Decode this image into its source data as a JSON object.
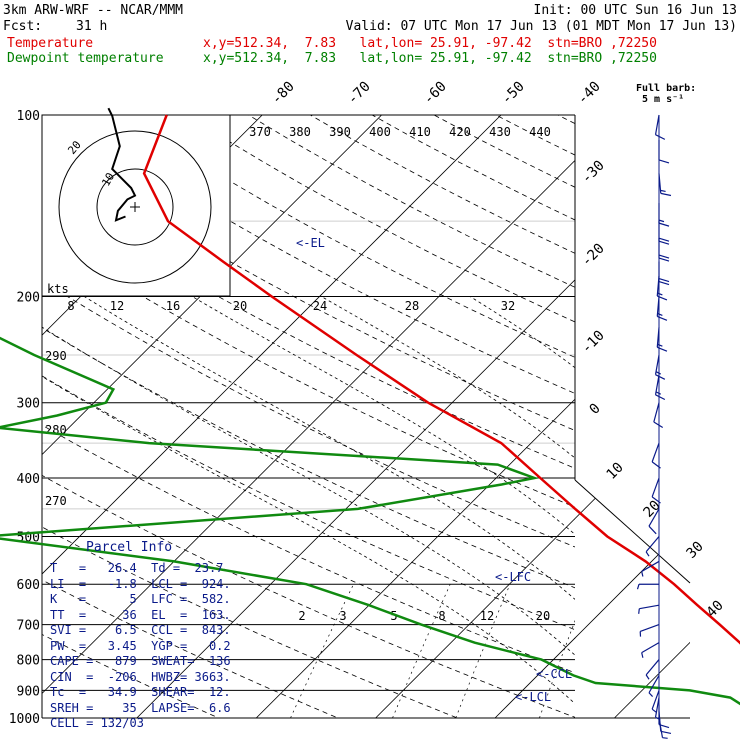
{
  "header": {
    "model": "3km ARW-WRF -- NCAR/MMM",
    "init": "Init: 00 UTC Sun 16 Jun 13",
    "fcst_label": "Fcst:",
    "fcst_value": "31 h",
    "valid": "Valid: 07 UTC Mon 17 Jun 13 (01 MDT Mon 17 Jun 13)",
    "temp_label": "Temperature",
    "temp_info": "x,y=512.34,  7.83   lat,lon= 25.91, -97.42  stn=BRO ,72250",
    "dew_label": "Dewpoint temperature",
    "dew_info": "x,y=512.34,  7.83   lat,lon= 25.91, -97.42  stn=BRO ,72250"
  },
  "wind_key": {
    "line1": "Full barb:",
    "line2": "5 m s⁻¹"
  },
  "hodograph": {
    "units": "kts",
    "ring_labels": [
      "10",
      "20"
    ]
  },
  "parcel_info": {
    "title": "Parcel Info",
    "rows": [
      "T   =   26.4  Td =  23.7",
      "LI  =   -1.8  LCL =  924.",
      "K   =      5  LFC =  582.",
      "TT  =     36  EL  =  163.",
      "SVI =    6.5  CCL =  843.",
      "PW  =   3.45  YGP =   0.2",
      "CAPE =   879  SWEAT=  136",
      "CIN  =  -206  HWBZ= 3663.",
      "Tc  =   34.9  SHEAR=  12.",
      "SREH =    35  LAPSE=  6.6",
      "CELL = 132/03"
    ]
  },
  "level_labels": {
    "el": "<-EL",
    "lfc": "<-LFC",
    "ccl": "<-CCL",
    "lcl": "<-LCL"
  },
  "colors": {
    "temperature": "#e00000",
    "dewpoint": "#108a10",
    "barbs": "#0a1a8a",
    "mixing": "#000000"
  },
  "chart_data": {
    "type": "skew-t",
    "y_axis": "pressure (hPa)",
    "pressure_ticks": [
      100,
      200,
      300,
      400,
      500,
      600,
      700,
      800,
      900,
      1000
    ],
    "isotherm_labels": [
      -80,
      -70,
      -60,
      -50,
      -40,
      -30,
      -20,
      -10,
      0,
      10,
      20,
      30,
      40
    ],
    "theta_e_labels": [
      370,
      380,
      390,
      400,
      410,
      420,
      430,
      440
    ],
    "hodo_speed_labels": [
      8,
      12,
      16,
      20,
      24,
      28,
      32
    ],
    "dry_adiabat_labels": [
      270,
      280,
      290
    ],
    "mixing_ratio_labels": [
      "2",
      "3",
      "5",
      "8",
      "12",
      "20"
    ],
    "temperature": [
      {
        "p": 1000,
        "t": 26.4
      },
      {
        "p": 975,
        "t": 23.5
      },
      {
        "p": 950,
        "t": 22.0
      },
      {
        "p": 925,
        "t": 21.6
      },
      {
        "p": 900,
        "t": 21.5
      },
      {
        "p": 875,
        "t": 21.8
      },
      {
        "p": 850,
        "t": 20.8
      },
      {
        "p": 800,
        "t": 17.0
      },
      {
        "p": 750,
        "t": 14.2
      },
      {
        "p": 700,
        "t": 11.0
      },
      {
        "p": 650,
        "t": 7.5
      },
      {
        "p": 600,
        "t": 3.8
      },
      {
        "p": 550,
        "t": -0.5
      },
      {
        "p": 500,
        "t": -5.8
      },
      {
        "p": 450,
        "t": -10.8
      },
      {
        "p": 400,
        "t": -16.3
      },
      {
        "p": 350,
        "t": -22.5
      },
      {
        "p": 300,
        "t": -32.0
      },
      {
        "p": 250,
        "t": -42.0
      },
      {
        "p": 200,
        "t": -54.0
      },
      {
        "p": 175,
        "t": -61.0
      },
      {
        "p": 150,
        "t": -69.0
      },
      {
        "p": 125,
        "t": -75.0
      },
      {
        "p": 100,
        "t": -78.0
      }
    ],
    "dewpoint": [
      {
        "p": 1000,
        "t": 23.7
      },
      {
        "p": 975,
        "t": 20.5
      },
      {
        "p": 950,
        "t": 19.5
      },
      {
        "p": 925,
        "t": 18.0
      },
      {
        "p": 900,
        "t": 14.0
      },
      {
        "p": 875,
        "t": 5.5
      },
      {
        "p": 850,
        "t": 3.0
      },
      {
        "p": 800,
        "t": -1.0
      },
      {
        "p": 750,
        "t": -8.0
      },
      {
        "p": 700,
        "t": -14.0
      },
      {
        "p": 650,
        "t": -20.0
      },
      {
        "p": 600,
        "t": -27.0
      },
      {
        "p": 550,
        "t": -40.0
      },
      {
        "p": 500,
        "t": -58.0
      },
      {
        "p": 450,
        "t": -29.0
      },
      {
        "p": 410,
        "t": -19.0
      },
      {
        "p": 400,
        "t": -16.8
      },
      {
        "p": 380,
        "t": -21.0
      },
      {
        "p": 350,
        "t": -52.0
      },
      {
        "p": 330,
        "t": -66.0
      },
      {
        "p": 315,
        "t": -62.0
      },
      {
        "p": 300,
        "t": -59.0
      },
      {
        "p": 285,
        "t": -59.5
      },
      {
        "p": 250,
        "t": -69.0
      },
      {
        "p": 225,
        "t": -76.0
      },
      {
        "p": 200,
        "t": -80.0
      },
      {
        "p": 175,
        "t": -87.0
      },
      {
        "p": 150,
        "t": -91.0
      },
      {
        "p": 125,
        "t": -92.5
      },
      {
        "p": 110,
        "t": -94.0
      },
      {
        "p": 100,
        "t": -94.5
      }
    ],
    "hodograph_kts": [
      [
        -2.5,
        -2.5
      ],
      [
        -5,
        -3.5
      ],
      [
        -4.5,
        -1
      ],
      [
        -2,
        2
      ],
      [
        0,
        3
      ],
      [
        -1,
        5
      ],
      [
        -4,
        8
      ],
      [
        -6,
        10
      ],
      [
        -5,
        13
      ],
      [
        -4,
        16
      ],
      [
        -5,
        20
      ],
      [
        -6,
        24
      ],
      [
        -7,
        26
      ]
    ],
    "wind_barbs": [
      {
        "p": 1000,
        "dir": 170,
        "spd_ms": 3
      },
      {
        "p": 975,
        "dir": 175,
        "spd_ms": 4
      },
      {
        "p": 950,
        "dir": 180,
        "spd_ms": 4
      },
      {
        "p": 925,
        "dir": 190,
        "spd_ms": 3
      },
      {
        "p": 900,
        "dir": 200,
        "spd_ms": 3
      },
      {
        "p": 850,
        "dir": 210,
        "spd_ms": 3
      },
      {
        "p": 800,
        "dir": 220,
        "spd_ms": 2
      },
      {
        "p": 750,
        "dir": 240,
        "spd_ms": 2
      },
      {
        "p": 700,
        "dir": 250,
        "spd_ms": 2
      },
      {
        "p": 650,
        "dir": 260,
        "spd_ms": 2
      },
      {
        "p": 600,
        "dir": 270,
        "spd_ms": 2
      },
      {
        "p": 550,
        "dir": 240,
        "spd_ms": 2
      },
      {
        "p": 500,
        "dir": 220,
        "spd_ms": 3
      },
      {
        "p": 450,
        "dir": 210,
        "spd_ms": 4
      },
      {
        "p": 400,
        "dir": 200,
        "spd_ms": 5
      },
      {
        "p": 350,
        "dir": 200,
        "spd_ms": 6
      },
      {
        "p": 300,
        "dir": 195,
        "spd_ms": 6
      },
      {
        "p": 270,
        "dir": 190,
        "spd_ms": 7
      },
      {
        "p": 250,
        "dir": 190,
        "spd_ms": 7
      },
      {
        "p": 225,
        "dir": 185,
        "spd_ms": 8
      },
      {
        "p": 200,
        "dir": 185,
        "spd_ms": 8
      },
      {
        "p": 185,
        "dir": 185,
        "spd_ms": 8
      },
      {
        "p": 175,
        "dir": 180,
        "spd_ms": 9
      },
      {
        "p": 160,
        "dir": 180,
        "spd_ms": 9
      },
      {
        "p": 150,
        "dir": 180,
        "spd_ms": 9
      },
      {
        "p": 140,
        "dir": 180,
        "spd_ms": 8
      },
      {
        "p": 125,
        "dir": 175,
        "spd_ms": 8
      },
      {
        "p": 110,
        "dir": 180,
        "spd_ms": 6
      },
      {
        "p": 100,
        "dir": 190,
        "spd_ms": 5
      }
    ]
  }
}
